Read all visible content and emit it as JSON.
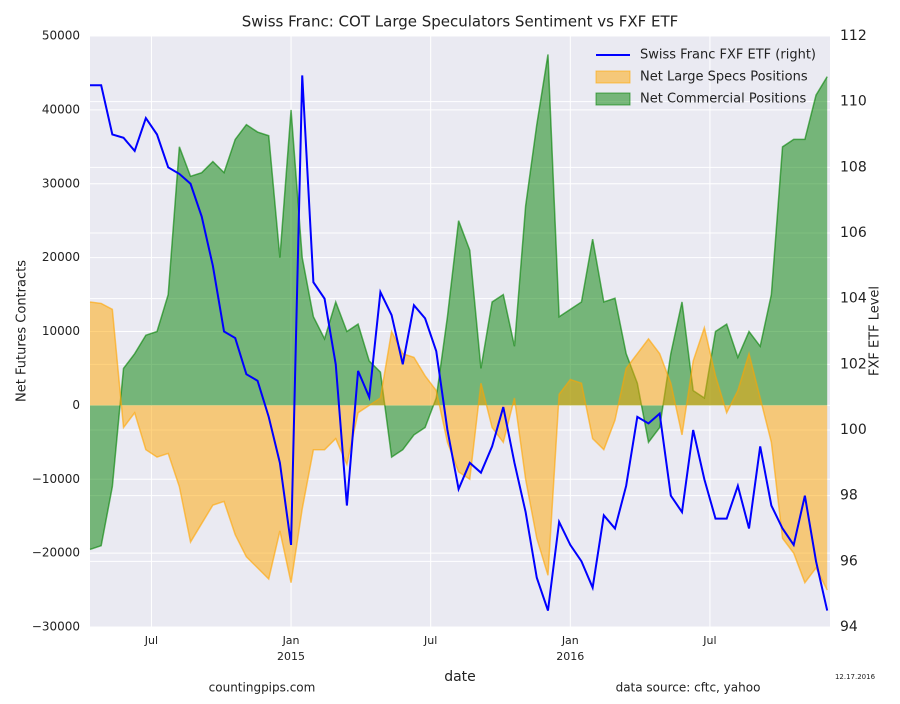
{
  "chart_data": {
    "type": "combo",
    "title": "Swiss Franc: COT Large Speculators Sentiment vs FXF ETF",
    "xlabel": "date",
    "ylabel": "Net Futures Contracts",
    "y2label": "FXF ETF Level",
    "annotations": [
      "countingpips.com",
      "data source: cftc, yahoo",
      "12.17.2016"
    ],
    "legend": "upper right",
    "grid": true,
    "x": [
      2014.28,
      2014.32,
      2014.36,
      2014.4,
      2014.44,
      2014.48,
      2014.52,
      2014.56,
      2014.6,
      2014.64,
      2014.68,
      2014.72,
      2014.76,
      2014.8,
      2014.84,
      2014.88,
      2014.92,
      2014.96,
      2015.0,
      2015.04,
      2015.08,
      2015.12,
      2015.16,
      2015.2,
      2015.24,
      2015.28,
      2015.32,
      2015.36,
      2015.4,
      2015.44,
      2015.48,
      2015.52,
      2015.56,
      2015.6,
      2015.64,
      2015.68,
      2015.72,
      2015.76,
      2015.8,
      2015.84,
      2015.88,
      2015.92,
      2015.96,
      2016.0,
      2016.04,
      2016.08,
      2016.12,
      2016.16,
      2016.2,
      2016.24,
      2016.28,
      2016.32,
      2016.36,
      2016.4,
      2016.44,
      2016.48,
      2016.52,
      2016.56,
      2016.6,
      2016.64,
      2016.68,
      2016.72,
      2016.76,
      2016.8,
      2016.84,
      2016.88,
      2016.92
    ],
    "xlim": [
      2014.28,
      2016.93
    ],
    "xticks": [
      {
        "value": 2014.5,
        "label": "Jul"
      },
      {
        "value": 2015.0,
        "label": "Jan 2015"
      },
      {
        "value": 2015.5,
        "label": "Jul"
      },
      {
        "value": 2016.0,
        "label": "Jan 2016"
      },
      {
        "value": 2016.5,
        "label": "Jul"
      }
    ],
    "ylim": [
      -30000,
      50000
    ],
    "yticks": [
      {
        "value": -30000,
        "label": "−30000"
      },
      {
        "value": -20000,
        "label": "−20000"
      },
      {
        "value": -10000,
        "label": "−10000"
      },
      0,
      10000,
      20000,
      30000,
      40000,
      50000
    ],
    "y2lim": [
      94,
      112
    ],
    "y2ticks": [
      94,
      96,
      98,
      100,
      102,
      104,
      106,
      108,
      110,
      112
    ],
    "series": [
      {
        "name": "Swiss Franc FXF ETF (right)",
        "type": "line",
        "axis": "y2",
        "color": "#0000ff",
        "values": [
          110.5,
          110.5,
          109,
          108.9,
          108.5,
          109.5,
          109,
          108,
          107.8,
          107.5,
          106.5,
          105,
          103,
          102.8,
          101.7,
          101.5,
          100.4,
          99,
          96.5,
          110.8,
          104.5,
          104,
          102,
          97.7,
          101.8,
          101,
          104.2,
          103.5,
          102,
          103.8,
          103.4,
          102.4,
          100,
          98.2,
          99,
          98.7,
          99.5,
          100.7,
          99,
          97.5,
          95.5,
          94.5,
          97.2,
          96.5,
          96,
          95.2,
          97.4,
          97,
          98.3,
          100.4,
          100.2,
          100.5,
          98,
          97.5,
          100,
          98.5,
          97.3,
          97.3,
          98.3,
          97,
          99.5,
          97.7,
          97,
          96.5,
          98,
          96,
          94.5
        ]
      },
      {
        "name": "Net Large Specs Positions",
        "type": "area",
        "color": "#ffa500",
        "values": [
          14000,
          13800,
          13000,
          -3000,
          -1000,
          -6000,
          -7000,
          -6500,
          -11000,
          -18500,
          -16000,
          -13500,
          -13000,
          -17500,
          -20500,
          -22000,
          -23500,
          -17000,
          -24000,
          -14000,
          -6000,
          -6000,
          -4500,
          -8000,
          -1000,
          0,
          1000,
          10000,
          7000,
          6500,
          4000,
          2000,
          -5000,
          -9000,
          -10000,
          3000,
          -3000,
          -5000,
          1000,
          -10000,
          -18000,
          -23000,
          1500,
          3500,
          3000,
          -4500,
          -6000,
          -2000,
          5000,
          7000,
          9000,
          7000,
          3000,
          -4000,
          6000,
          10500,
          4000,
          -1000,
          2000,
          7000,
          1000,
          -5000,
          -18000,
          -20000,
          -24000,
          -22000,
          -25000
        ]
      },
      {
        "name": "Net Commercial Positions",
        "type": "area",
        "color": "#008000",
        "values": [
          -19500,
          -19000,
          -11000,
          5000,
          7000,
          9500,
          10000,
          15000,
          35000,
          31000,
          31500,
          33000,
          31500,
          36000,
          38000,
          37000,
          36500,
          20000,
          40000,
          20000,
          12000,
          9000,
          14000,
          10000,
          11000,
          6000,
          4500,
          -7000,
          -6000,
          -4000,
          -3000,
          1000,
          12000,
          25000,
          21000,
          5000,
          14000,
          15000,
          8000,
          27000,
          38000,
          47500,
          12000,
          13000,
          14000,
          22500,
          14000,
          14500,
          7000,
          3000,
          -5000,
          -3000,
          7000,
          14000,
          2000,
          1000,
          10000,
          11000,
          6500,
          10000,
          8000,
          15000,
          35000,
          36000,
          36000,
          42000,
          44500
        ]
      }
    ]
  }
}
